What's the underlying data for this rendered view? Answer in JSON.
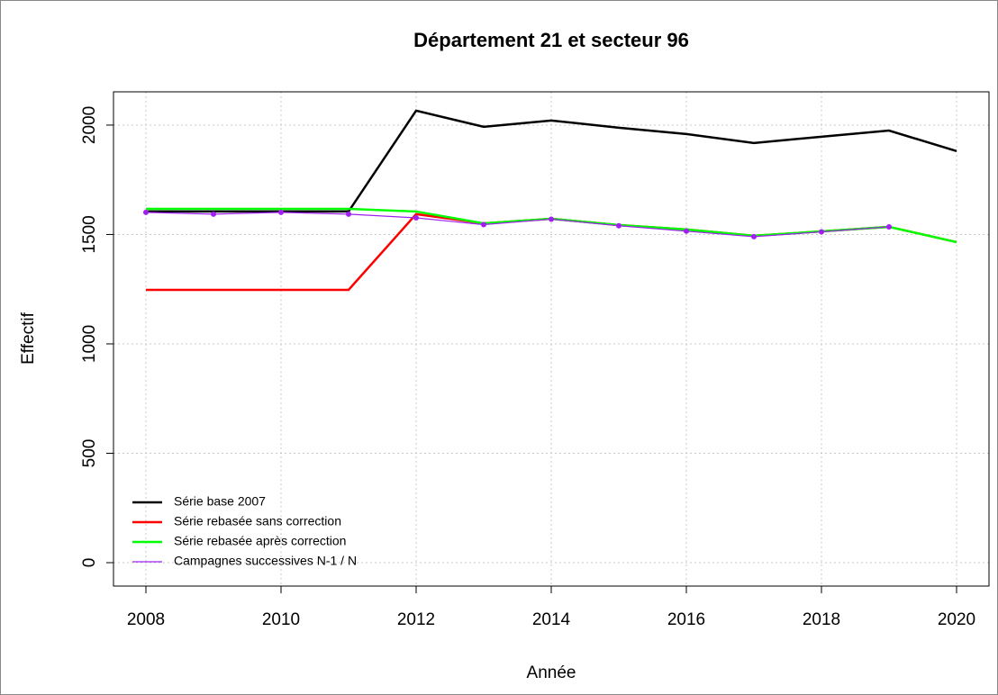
{
  "chart_data": {
    "type": "line",
    "title": "Département 21 et secteur 96",
    "x_label": "Année",
    "y_label": "Effectif",
    "x": [
      2008,
      2009,
      2010,
      2011,
      2012,
      2013,
      2014,
      2015,
      2016,
      2017,
      2018,
      2019,
      2020
    ],
    "series": [
      {
        "name": "Série base 2007",
        "color": "#000000",
        "values": [
          1605,
          1605,
          1605,
          1605,
          2066,
          1992,
          2021,
          1988,
          1959,
          1918,
          1947,
          1975,
          1881
        ]
      },
      {
        "name": "Série rebasée sans correction",
        "color": "#ff0000",
        "values": [
          1247,
          1247,
          1247,
          1247,
          1593,
          1551,
          1572,
          1543,
          1523,
          1494,
          1514,
          1535,
          1465
        ]
      },
      {
        "name": "Série rebasée après correction",
        "color": "#00ff00",
        "values": [
          1617,
          1617,
          1617,
          1617,
          1605,
          1551,
          1572,
          1543,
          1523,
          1494,
          1514,
          1535,
          1465
        ]
      },
      {
        "name": "Campagnes successives N-1 / N",
        "color": "#a020f0",
        "values": [
          1601,
          1593,
          1601,
          1593,
          1576,
          1545,
          1570,
          1540,
          1515,
          1490,
          1512,
          1535,
          null
        ],
        "markers": true
      }
    ],
    "xlim": [
      2007.52,
      2020.48
    ],
    "xticks": [
      2008,
      2010,
      2012,
      2014,
      2016,
      2018,
      2020
    ],
    "ylim": [
      -107,
      2152
    ],
    "yticks": [
      0,
      500,
      1000,
      1500,
      2000
    ],
    "grid": true,
    "legend": "bottom-left"
  }
}
